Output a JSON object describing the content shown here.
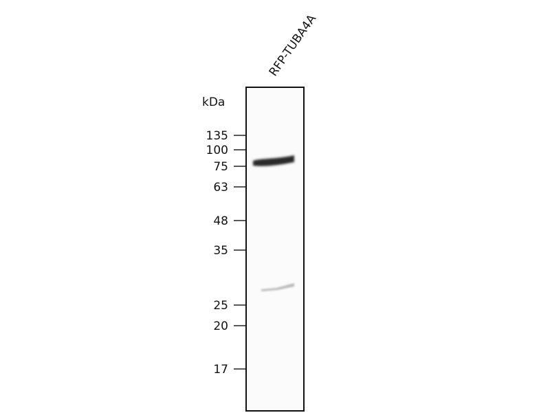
{
  "lane_label": "RFP-TUBA4A",
  "unit_label": "kDa",
  "markers": [
    "135",
    "100",
    "75",
    "63",
    "48",
    "35",
    "25",
    "20",
    "17"
  ]
}
